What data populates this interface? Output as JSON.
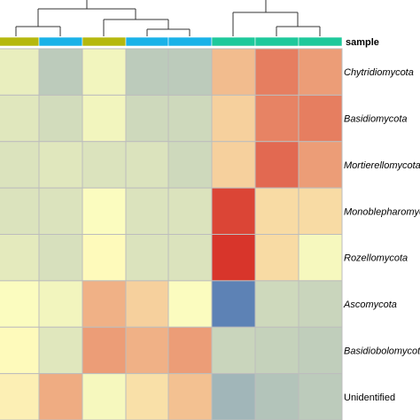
{
  "chart_data": {
    "type": "heatmap",
    "annotation_title": "sample",
    "rows": [
      "Chytridiomycota",
      "Basidiomycota",
      "Mortierellomycota",
      "Monoblepharomycota",
      "Rozellomycota",
      "Ascomycota",
      "Basidiobolomycota",
      "Unidentified"
    ],
    "row_label_italic": [
      true,
      true,
      true,
      true,
      true,
      true,
      true,
      false
    ],
    "column_group_colors": [
      "#b5b80e",
      "#1ab2e8",
      "#b5b80e",
      "#1ab2e8",
      "#1ab2e8",
      "#1ec99b",
      "#1ec99b",
      "#1ec99b"
    ],
    "colors": {
      "low": "#4b74b4",
      "mid": "#ffffbf",
      "high": "#d73027",
      "grid": "#bdbdbd",
      "dendrogram": "#333333"
    },
    "color_scale": [
      -2,
      2
    ],
    "values": [
      [
        -0.25,
        -0.75,
        -0.15,
        -0.75,
        -0.75,
        0.65,
        1.25,
        0.95
      ],
      [
        -0.35,
        -0.5,
        -0.15,
        -0.55,
        -0.55,
        0.45,
        1.2,
        1.25
      ],
      [
        -0.4,
        -0.35,
        -0.4,
        -0.4,
        -0.55,
        0.45,
        1.45,
        0.95
      ],
      [
        -0.4,
        -0.4,
        -0.05,
        -0.4,
        -0.4,
        1.8,
        0.35,
        0.35
      ],
      [
        -0.3,
        -0.45,
        0.05,
        -0.4,
        -0.4,
        1.95,
        0.35,
        -0.1
      ],
      [
        -0.05,
        -0.15,
        0.75,
        0.45,
        -0.05,
        -1.8,
        -0.55,
        -0.6
      ],
      [
        0.05,
        -0.35,
        0.95,
        0.75,
        0.95,
        -0.6,
        -0.65,
        -0.7
      ],
      [
        0.15,
        0.8,
        -0.1,
        0.3,
        0.6,
        -1.05,
        -0.85,
        -0.75
      ]
    ]
  }
}
